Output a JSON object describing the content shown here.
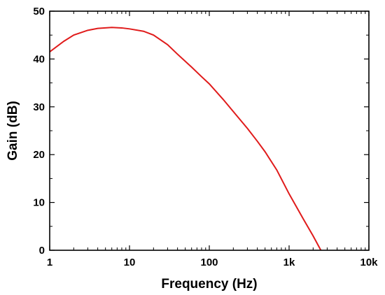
{
  "chart_data": {
    "type": "line",
    "title": "",
    "xlabel": "Frequency (Hz)",
    "ylabel": "Gain (dB)",
    "xscale": "log",
    "xlim": [
      1,
      10000
    ],
    "ylim": [
      0,
      50
    ],
    "x_ticks": [
      1,
      10,
      100,
      1000,
      10000
    ],
    "x_tick_labels": [
      "1",
      "10",
      "100",
      "1k",
      "10k"
    ],
    "y_ticks": [
      0,
      10,
      20,
      30,
      40,
      50
    ],
    "y_tick_labels": [
      "0",
      "10",
      "20",
      "30",
      "40",
      "50"
    ],
    "grid": false,
    "legend": "none",
    "series": [
      {
        "color": "#e01b1b",
        "x": [
          1,
          1.5,
          2,
          3,
          4,
          6,
          8,
          10,
          15,
          20,
          30,
          40,
          60,
          80,
          100,
          150,
          200,
          300,
          400,
          500,
          700,
          1000,
          1500,
          2000,
          2500
        ],
        "y": [
          41.5,
          43.7,
          45.0,
          46.0,
          46.4,
          46.6,
          46.5,
          46.3,
          45.8,
          45.0,
          43.0,
          41.0,
          38.3,
          36.3,
          34.8,
          31.5,
          29.0,
          25.5,
          22.8,
          20.6,
          16.8,
          11.8,
          6.6,
          3.0,
          0
        ]
      }
    ]
  }
}
